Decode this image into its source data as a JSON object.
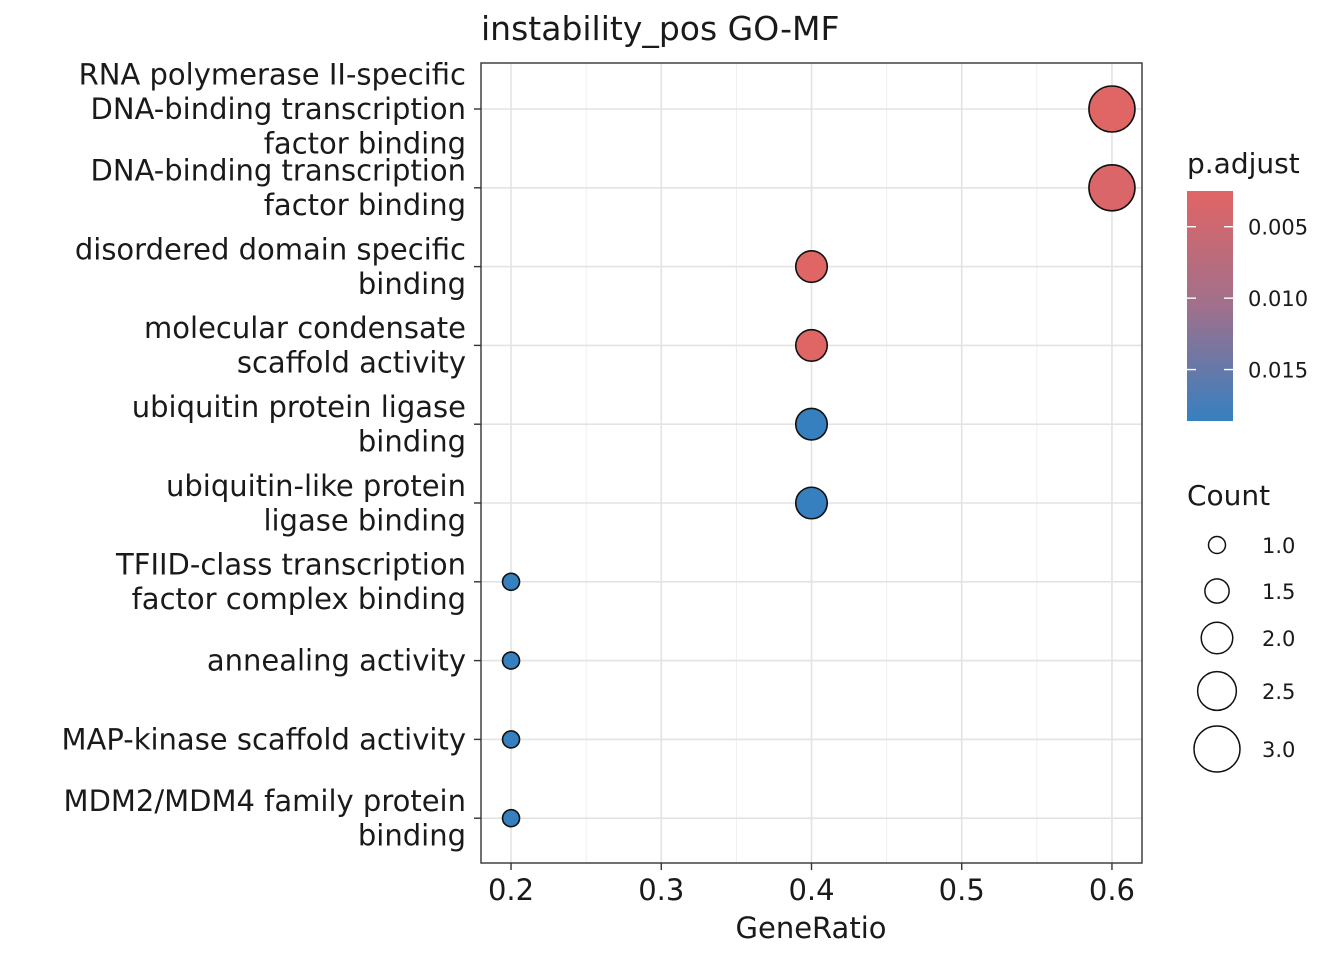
{
  "chart_data": {
    "type": "scatter",
    "title": "instability_pos GO-MF",
    "xlabel": "GeneRatio",
    "ylabel": "",
    "xlim": [
      0.18,
      0.62
    ],
    "xticks": [
      "0.2",
      "0.3",
      "0.4",
      "0.5",
      "0.6"
    ],
    "grid": true,
    "categories": [
      "RNA polymerase II-specific DNA-binding transcription factor binding",
      "DNA-binding transcription factor binding",
      "disordered domain specific binding",
      "molecular condensate scaffold activity",
      "ubiquitin protein ligase binding",
      "ubiquitin-like protein ligase binding",
      "TFIID-class transcription factor complex binding",
      "annealing activity",
      "MAP-kinase scaffold activity",
      "MDM2/MDM4 family protein binding"
    ],
    "category_lines": [
      [
        "RNA polymerase II-specific",
        "DNA-binding transcription",
        "factor binding"
      ],
      [
        "DNA-binding transcription",
        "factor binding"
      ],
      [
        "disordered domain specific",
        "binding"
      ],
      [
        "molecular condensate",
        "scaffold activity"
      ],
      [
        "ubiquitin protein ligase",
        "binding"
      ],
      [
        "ubiquitin-like protein",
        "ligase binding"
      ],
      [
        "TFIID-class transcription",
        "factor complex binding"
      ],
      [
        "annealing activity"
      ],
      [
        "MAP-kinase scaffold activity"
      ],
      [
        "MDM2/MDM4 family protein",
        "binding"
      ]
    ],
    "x": [
      0.6,
      0.6,
      0.4,
      0.4,
      0.4,
      0.4,
      0.2,
      0.2,
      0.2,
      0.2
    ],
    "count": [
      3,
      3,
      2,
      2,
      2,
      2,
      1,
      1,
      1,
      1
    ],
    "p_adjust": [
      0.0025,
      0.0033,
      0.0025,
      0.0025,
      0.0186,
      0.0186,
      0.0186,
      0.0186,
      0.0186,
      0.0186
    ],
    "color_legend": {
      "title": "p.adjust",
      "ticks": [
        "0.005",
        "0.010",
        "0.015"
      ],
      "tick_values": [
        0.005,
        0.01,
        0.015
      ],
      "range": [
        0.0025,
        0.0186
      ],
      "low_color": "#e06565",
      "high_color": "#3680c0",
      "mid_color": "#a0708c"
    },
    "size_legend": {
      "title": "Count",
      "labels": [
        "1.0",
        "1.5",
        "2.0",
        "2.5",
        "3.0"
      ],
      "values": [
        1.0,
        1.5,
        2.0,
        2.5,
        3.0
      ]
    },
    "legend_position": "right"
  }
}
